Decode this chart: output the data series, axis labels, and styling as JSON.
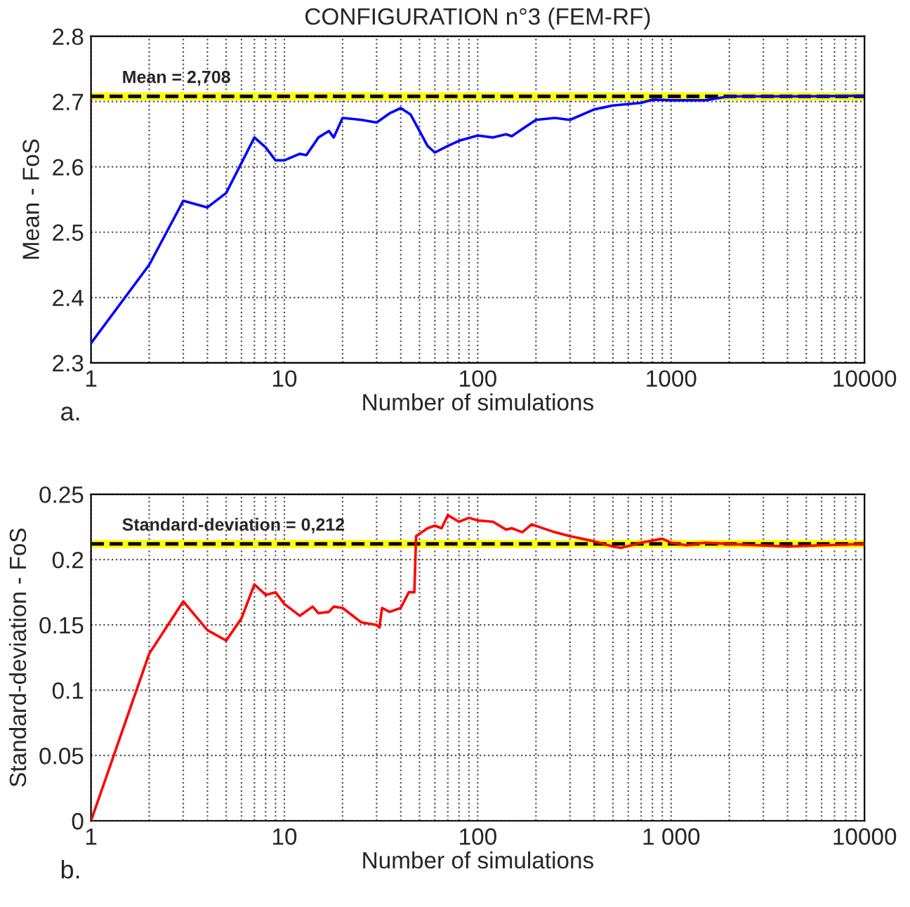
{
  "chart_data": [
    {
      "type": "line",
      "title": "CONFIGURATION n°3 (FEM-RF)",
      "xlabel": "Number of simulations",
      "ylabel": "Mean - FoS",
      "log": "x",
      "grid": true,
      "xlim": [
        1,
        10000
      ],
      "xticks": [
        1,
        10,
        100,
        1000,
        10000
      ],
      "ylim": [
        2.3,
        2.8
      ],
      "yticks": [
        2.3,
        2.4,
        2.5,
        2.6,
        2.7,
        2.8
      ],
      "series": [
        {
          "color": "#0000ff",
          "x": [
            1,
            2,
            3,
            4,
            5,
            7,
            8,
            9,
            10,
            12,
            13,
            15,
            17,
            18,
            20,
            25,
            30,
            35,
            40,
            45,
            50,
            55,
            60,
            70,
            80,
            100,
            120,
            140,
            150,
            170,
            200,
            250,
            300,
            400,
            500,
            700,
            800,
            1000,
            1500,
            2000,
            3000,
            5000,
            10000
          ],
          "values": [
            2.33,
            2.45,
            2.548,
            2.538,
            2.56,
            2.645,
            2.63,
            2.61,
            2.61,
            2.62,
            2.618,
            2.645,
            2.655,
            2.645,
            2.675,
            2.672,
            2.668,
            2.682,
            2.69,
            2.68,
            2.655,
            2.632,
            2.622,
            2.632,
            2.64,
            2.648,
            2.645,
            2.65,
            2.647,
            2.658,
            2.672,
            2.675,
            2.672,
            2.688,
            2.694,
            2.698,
            2.703,
            2.702,
            2.702,
            2.708,
            2.708,
            2.708,
            2.709
          ]
        }
      ],
      "ref_lines": [
        {
          "axis": "y",
          "value": 2.708,
          "color": "#ffff00",
          "line_style": "solid"
        },
        {
          "axis": "y",
          "value": 2.708,
          "label": "Mean = 2,708",
          "color": "#000000",
          "line_style": "dashed"
        }
      ],
      "annotations": [
        "a."
      ]
    },
    {
      "type": "line",
      "xlabel": "Number of simulations",
      "ylabel": "Standard-deviation - FoS",
      "log": "x",
      "grid": true,
      "xlim": [
        1,
        10000
      ],
      "xticks": [
        1,
        10,
        100,
        {
          "value": 1000,
          "label": "1 000"
        },
        10000
      ],
      "ylim": [
        0,
        0.25
      ],
      "yticks": [
        0,
        0.05,
        0.1,
        0.15,
        0.2,
        0.25
      ],
      "series": [
        {
          "color": "#ff0000",
          "x": [
            1,
            2,
            3,
            4,
            5,
            6,
            7,
            8,
            9,
            10,
            12,
            14,
            15,
            17,
            18,
            20,
            25,
            30,
            31,
            32,
            35,
            40,
            44,
            47,
            48,
            55,
            60,
            65,
            70,
            80,
            90,
            100,
            120,
            140,
            150,
            170,
            190,
            250,
            300,
            400,
            500,
            550,
            700,
            900,
            1000,
            1200,
            1500,
            2000,
            4000,
            6000,
            10000
          ],
          "values": [
            0,
            0.128,
            0.168,
            0.146,
            0.138,
            0.155,
            0.181,
            0.173,
            0.175,
            0.166,
            0.157,
            0.164,
            0.159,
            0.16,
            0.164,
            0.163,
            0.152,
            0.15,
            0.148,
            0.163,
            0.16,
            0.163,
            0.175,
            0.175,
            0.218,
            0.224,
            0.226,
            0.224,
            0.234,
            0.229,
            0.232,
            0.23,
            0.229,
            0.223,
            0.224,
            0.221,
            0.227,
            0.221,
            0.218,
            0.214,
            0.21,
            0.209,
            0.213,
            0.216,
            0.213,
            0.211,
            0.213,
            0.212,
            0.21,
            0.211,
            0.212
          ]
        }
      ],
      "ref_lines": [
        {
          "axis": "y",
          "value": 0.212,
          "color": "#ffff00",
          "line_style": "solid"
        },
        {
          "axis": "y",
          "value": 0.212,
          "label": "Standard-deviation = 0,212",
          "color": "#000000",
          "line_style": "dashed"
        }
      ],
      "annotations": [
        "b."
      ]
    }
  ]
}
